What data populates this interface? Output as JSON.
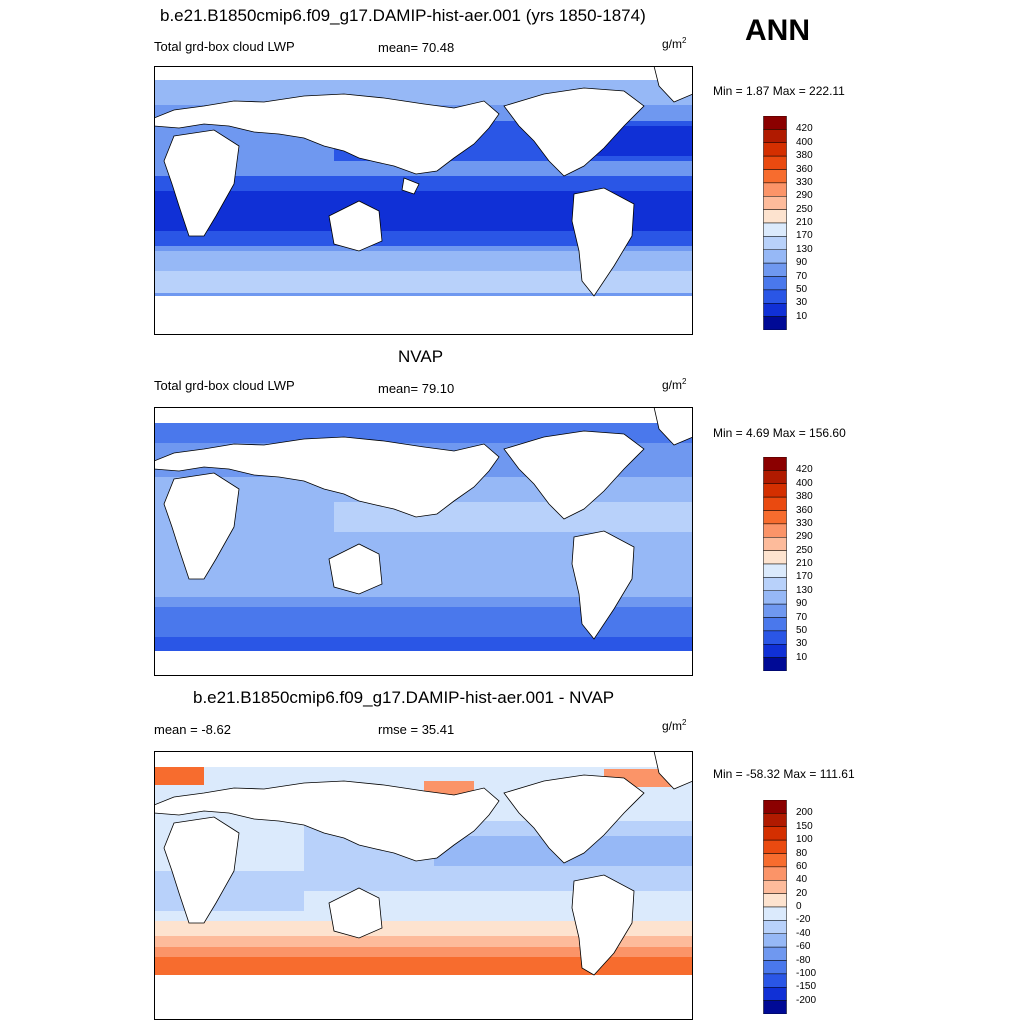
{
  "season": "ANN",
  "panels": [
    {
      "title": "b.e21.B1850cmip6.f09_g17.DAMIP-hist-aer.001 (yrs 1850-1874)",
      "variable": "Total grd-box cloud LWP",
      "stat1": "mean=  70.48",
      "stat2": "",
      "units": "g/m",
      "units_exp": "2",
      "minmax": "Min =   1.87 Max = 222.11",
      "colorbar": {
        "labels": [
          "420",
          "400",
          "380",
          "360",
          "330",
          "290",
          "250",
          "210",
          "170",
          "130",
          "90",
          "70",
          "50",
          "30",
          "10"
        ],
        "colors": [
          "#8b0000",
          "#b01a00",
          "#d42f00",
          "#ea4a10",
          "#f76c2e",
          "#fb9468",
          "#fdbb9b",
          "#fde3cf",
          "#dbeafc",
          "#b8d1fa",
          "#96b8f6",
          "#6f98f0",
          "#4a78ec",
          "#2a56e6",
          "#1030d6",
          "#000a96"
        ]
      }
    },
    {
      "title": "NVAP",
      "variable": "Total grd-box cloud LWP",
      "stat1": "mean=  79.10",
      "stat2": "",
      "units": "g/m",
      "units_exp": "2",
      "minmax": "Min =   4.69 Max = 156.60",
      "colorbar": {
        "labels": [
          "420",
          "400",
          "380",
          "360",
          "330",
          "290",
          "250",
          "210",
          "170",
          "130",
          "90",
          "70",
          "50",
          "30",
          "10"
        ],
        "colors": [
          "#8b0000",
          "#b01a00",
          "#d42f00",
          "#ea4a10",
          "#f76c2e",
          "#fb9468",
          "#fdbb9b",
          "#fde3cf",
          "#dbeafc",
          "#b8d1fa",
          "#96b8f6",
          "#6f98f0",
          "#4a78ec",
          "#2a56e6",
          "#1030d6",
          "#000a96"
        ]
      }
    },
    {
      "title": "b.e21.B1850cmip6.f09_g17.DAMIP-hist-aer.001 - NVAP",
      "variable": "mean =  -8.62",
      "stat1": "rmse =  35.41",
      "stat2": "",
      "units": "g/m",
      "units_exp": "2",
      "minmax": "Min = -58.32 Max = 111.61",
      "colorbar": {
        "labels": [
          "200",
          "150",
          "100",
          "80",
          "60",
          "40",
          "20",
          "0",
          "-20",
          "-40",
          "-60",
          "-80",
          "-100",
          "-150",
          "-200"
        ],
        "colors": [
          "#8b0000",
          "#b01a00",
          "#d42f00",
          "#ea4a10",
          "#f76c2e",
          "#fb9468",
          "#fdbb9b",
          "#fde3cf",
          "#dbeafc",
          "#b8d1fa",
          "#96b8f6",
          "#6f98f0",
          "#4a78ec",
          "#2a56e6",
          "#1030d6",
          "#000a96"
        ]
      }
    }
  ]
}
